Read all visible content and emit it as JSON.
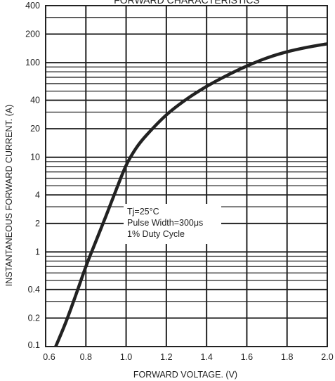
{
  "chart_data": {
    "type": "line",
    "title": "FORWARD CHARACTERISTICS",
    "xlabel": "FORWARD VOLTAGE. (V)",
    "ylabel": "INSTANTANEOUS FORWARD CURRENT. (A)",
    "xscale": "linear",
    "yscale": "log",
    "xlim": [
      0.6,
      2.0
    ],
    "ylim": [
      0.1,
      400
    ],
    "grid": true,
    "x_ticks": [
      0.6,
      0.8,
      1.0,
      1.2,
      1.4,
      1.6,
      1.8,
      2.0
    ],
    "x_tick_labels": [
      "0.6",
      "0.8",
      "1.0",
      "1.2",
      "1.4",
      "1.6",
      "1.8",
      "2.0"
    ],
    "y_ticks": [
      0.1,
      0.2,
      0.4,
      1,
      2,
      4,
      10,
      20,
      40,
      100,
      200,
      400
    ],
    "y_tick_labels": [
      "0.1",
      "0.2",
      "0.4",
      "1",
      "2",
      "4",
      "10",
      "20",
      "40",
      "100",
      "200",
      "400"
    ],
    "series": [
      {
        "x": [
          0.65,
          0.7,
          0.75,
          0.8,
          0.85,
          0.9,
          0.95,
          1.0,
          1.05,
          1.1,
          1.2,
          1.3,
          1.4,
          1.5,
          1.6,
          1.7,
          1.8,
          1.9,
          2.0
        ],
        "y": [
          0.1,
          0.18,
          0.35,
          0.7,
          1.3,
          2.4,
          4.5,
          8.2,
          12.5,
          17,
          28,
          41,
          56,
          73,
          92,
          112,
          130,
          145,
          158
        ],
        "color": "#222222"
      }
    ],
    "annotations": [
      "Tj=25°C",
      "Pulse Width=300μs",
      "1% Duty Cycle"
    ]
  }
}
